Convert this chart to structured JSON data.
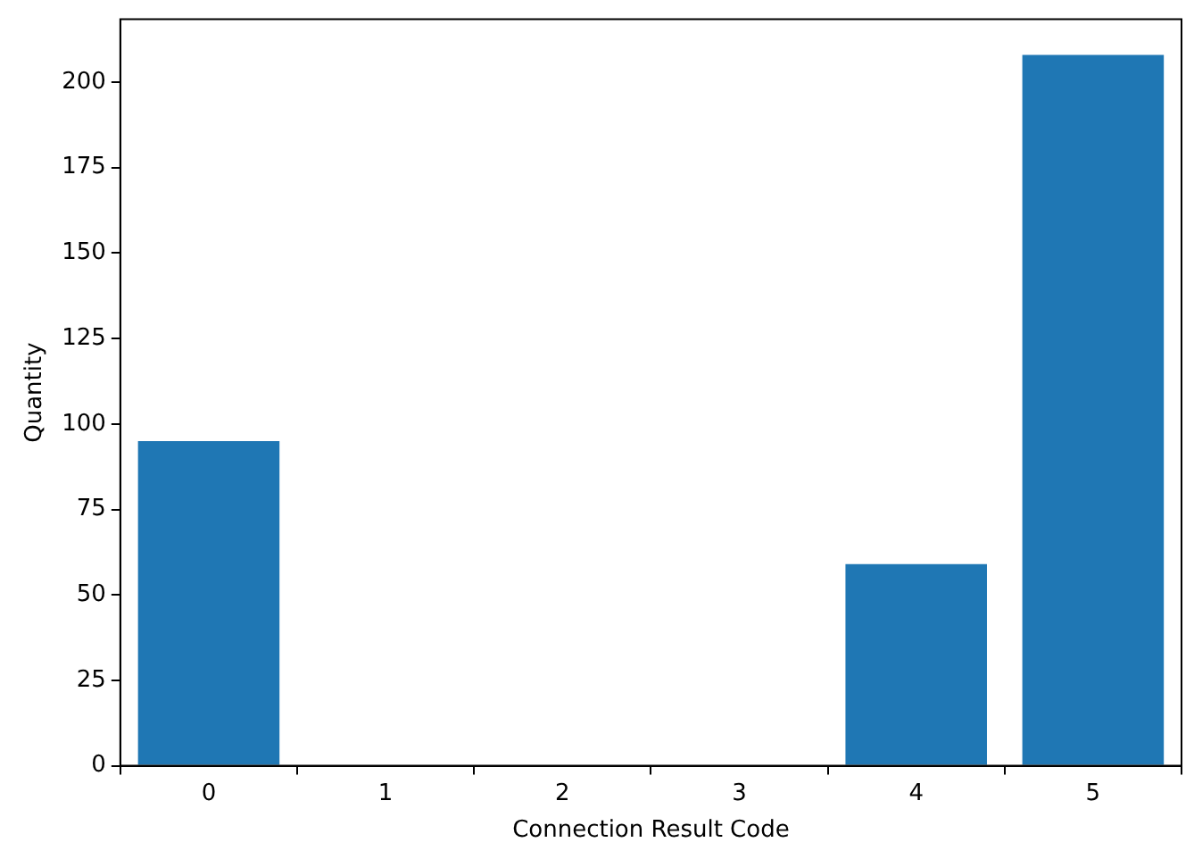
{
  "chart_data": {
    "type": "bar",
    "xlabel": "Connection Result Code",
    "ylabel": "Quantity",
    "categories": [
      "0",
      "1",
      "2",
      "3",
      "4",
      "5"
    ],
    "values": [
      95,
      0,
      0,
      0,
      59,
      208
    ],
    "color": "#1f77b4",
    "ylim": [
      0,
      218.4
    ],
    "yticks": [
      0,
      25,
      50,
      75,
      100,
      125,
      150,
      175,
      200
    ],
    "grid": false,
    "legend": false
  }
}
